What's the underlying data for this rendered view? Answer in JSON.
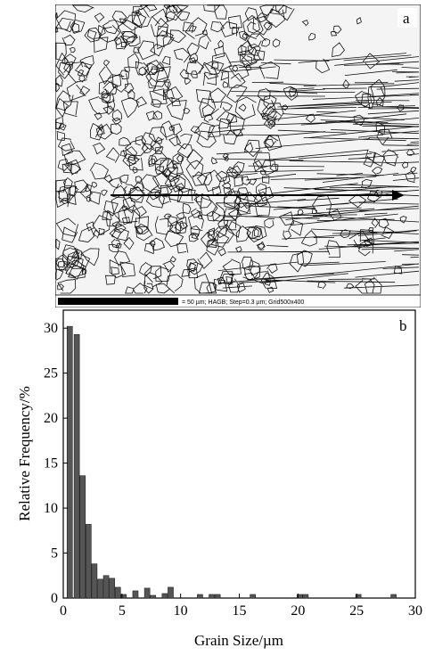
{
  "micrograph": {
    "panel_label": "a",
    "caption": "= 50 µm; HAGB; Step=0.3 µm; Grid500x400"
  },
  "chart_data": {
    "type": "bar",
    "panel_label": "b",
    "xlabel": "Grain Size/µm",
    "ylabel": "Relative Frequency/%",
    "xlim": [
      0,
      30
    ],
    "ylim": [
      0,
      32
    ],
    "xticks": [
      "0",
      "5",
      "10",
      "15",
      "20",
      "25",
      "30"
    ],
    "yticks": [
      "0",
      "5",
      "10",
      "15",
      "20",
      "25",
      "30"
    ],
    "grid": false,
    "bar_color": "#555555",
    "x": [
      0.55,
      1.15,
      1.65,
      2.15,
      2.65,
      3.15,
      3.65,
      4.15,
      4.65,
      5.15,
      6.15,
      7.15,
      7.65,
      8.65,
      9.15,
      11.65,
      12.65,
      13.15,
      16.15,
      20.15,
      20.65,
      25.15,
      28.15
    ],
    "values": [
      30.2,
      29.3,
      13.6,
      8.2,
      3.8,
      2.1,
      2.5,
      2.2,
      1.2,
      0.4,
      0.8,
      1.1,
      0.3,
      0.5,
      1.2,
      0.4,
      0.4,
      0.4,
      0.4,
      0.4,
      0.4,
      0.4,
      0.4
    ]
  }
}
